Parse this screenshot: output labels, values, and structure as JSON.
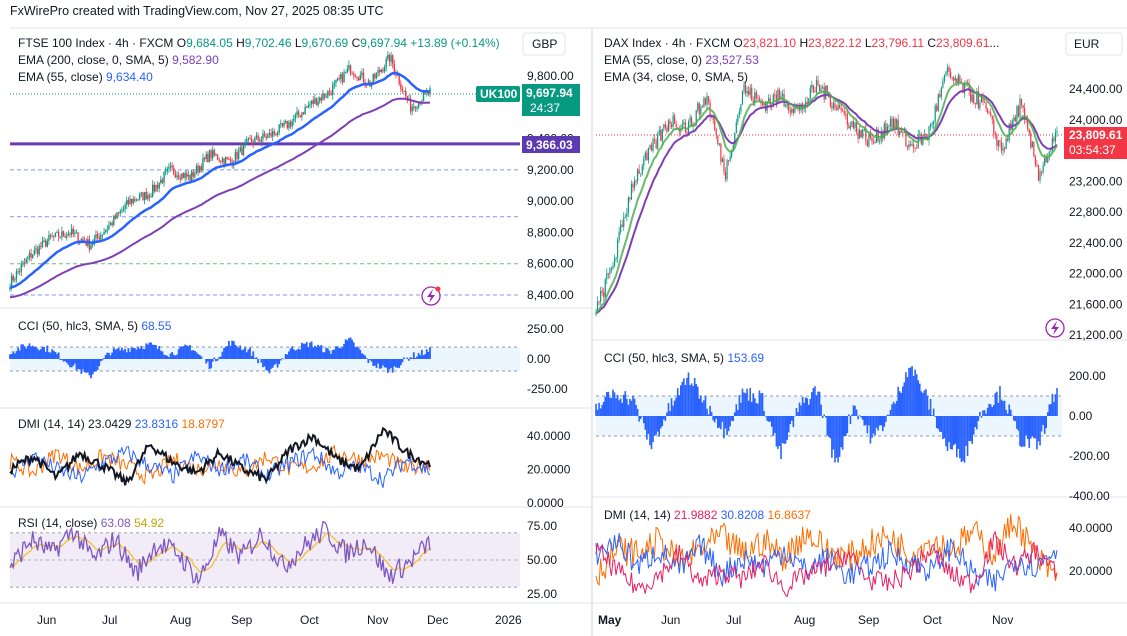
{
  "header": "FxWirePro created with TradingView.com, Nov 27, 2025 08:35 UTC",
  "colors": {
    "bull": "#089981",
    "bear": "#f23645",
    "ema_blue": "#2962ff",
    "ema_purple": "#7e3fb6",
    "ema_green": "#4caf50",
    "line_purple": "#673ab7",
    "cci_blue": "#2962ff",
    "dmi_black": "#131722",
    "dmi_orange": "#ff6d00",
    "dmi_blue": "#2962ff",
    "dmi_red": "#e91e63",
    "rsi_purple": "#7e57c2",
    "rsi_yellow": "#f5c02a",
    "label_green": "#089981",
    "label_red": "#f23645",
    "label_purple": "#5b3ab2"
  },
  "left": {
    "currency": "GBP",
    "legend": {
      "title": "FTSE 100 Index · 4h · FXCM",
      "o": "O",
      "o_val": "9,684.05",
      "h": "H",
      "h_val": "9,702.46",
      "l": "L",
      "l_val": "9,670.69",
      "c": "C",
      "c_val": "9,697.94",
      "chg": "+13.89 (+0.14%)",
      "ema1_label": "EMA (200, close, 0, SMA, 5)",
      "ema1_val": "9,582.90",
      "ema2_label": "EMA (55, close)",
      "ema2_val": "9,634.40"
    },
    "symbol_tag": "UK100",
    "price_tag": "9,697.94",
    "countdown": "24:37",
    "level_tag": "9,366.03",
    "cci_label": "CCI (50, hlc3, SMA, 5)",
    "cci_val": "68.55",
    "dmi_label": "DMI (14, 14)",
    "dmi_v1": "23.0429",
    "dmi_v2": "23.8316",
    "dmi_v3": "18.8797",
    "rsi_label": "RSI (14, close)",
    "rsi_v1": "63.08",
    "rsi_v2": "54.92",
    "x_labels": [
      "Jun",
      "Jul",
      "Aug",
      "Sep",
      "Oct",
      "Nov",
      "Dec",
      "2026"
    ]
  },
  "right": {
    "currency": "EUR",
    "legend": {
      "title": "DAX Index · 4h · FXCM",
      "o": "O",
      "o_val": "23,821.10",
      "h": "H",
      "h_val": "23,822.12",
      "l": "L",
      "l_val": "23,796.11",
      "c": "C",
      "c_val": "23,809.61",
      "ellipsis": "...",
      "ema1_label": "EMA (55, close, 0)",
      "ema1_val": "23,527.53",
      "ema2_label": "EMA (34, close, 0, SMA, 5)"
    },
    "price_tag": "23,809.61",
    "countdown": "03:54:37",
    "cci_label": "CCI (50, hlc3, SMA, 5)",
    "cci_val": "153.69",
    "dmi_label": "DMI (14, 14)",
    "dmi_v1": "21.9882",
    "dmi_v2": "30.8208",
    "dmi_v3": "16.8637",
    "x_labels": [
      "May",
      "Jun",
      "Jul",
      "Aug",
      "Sep",
      "Oct",
      "Nov"
    ]
  },
  "chart_data": [
    {
      "type": "line",
      "title": "FTSE 100 Index · 4h · FXCM",
      "x": [
        "Jun",
        "Jul",
        "Aug",
        "Sep",
        "Oct",
        "Nov",
        "Dec"
      ],
      "series": [
        {
          "name": "FTSE 100 Index",
          "values": [
            8650,
            8800,
            9100,
            9250,
            9400,
            9800,
            9697.94
          ]
        },
        {
          "name": "EMA (200, close, 0, SMA, 5)",
          "values": [
            8500,
            8700,
            8950,
            9100,
            9250,
            9500,
            9582.9
          ]
        },
        {
          "name": "EMA (55, close)",
          "values": [
            8600,
            8780,
            9050,
            9200,
            9350,
            9700,
            9634.4
          ]
        }
      ],
      "yticks": [
        "9,800.00",
        "9,400.00",
        "9,200.00",
        "9,000.00",
        "8,800.00",
        "8,600.00",
        "8,400.00"
      ],
      "ylim": [
        8400,
        9950
      ],
      "hline": 9366.03
    },
    {
      "type": "bar",
      "title": "CCI (50, hlc3, SMA, 5)",
      "yticks": [
        "250.00",
        "0.00",
        "-250.00"
      ],
      "last": 68.55
    },
    {
      "type": "line",
      "title": "DMI (14, 14)",
      "yticks": [
        "40.0000",
        "20.0000",
        "0.0000"
      ],
      "last": [
        23.0429,
        23.8316,
        18.8797
      ]
    },
    {
      "type": "line",
      "title": "RSI (14, close)",
      "yticks": [
        "75.00",
        "50.00",
        "25.00"
      ],
      "last": [
        63.08,
        54.92
      ]
    },
    {
      "type": "line",
      "title": "DAX Index · 4h · FXCM",
      "x": [
        "May",
        "Jun",
        "Jul",
        "Aug",
        "Sep",
        "Oct",
        "Nov"
      ],
      "series": [
        {
          "name": "DAX Index",
          "values": [
            21500,
            24000,
            24300,
            24000,
            23600,
            24400,
            23809.61
          ]
        },
        {
          "name": "EMA (55, close, 0)",
          "values": [
            21200,
            23700,
            24100,
            24000,
            23700,
            24200,
            23527.53
          ]
        }
      ],
      "yticks": [
        "24,400.00",
        "24,000.00",
        "23,200.00",
        "22,800.00",
        "22,400.00",
        "22,000.00",
        "21,600.00",
        "21,200.00"
      ],
      "ylim": [
        21000,
        24800
      ]
    },
    {
      "type": "bar",
      "title": "CCI (50, hlc3, SMA, 5)",
      "yticks": [
        "200.00",
        "0.00",
        "-200.00",
        "-400.00"
      ],
      "last": 153.69
    },
    {
      "type": "line",
      "title": "DMI (14, 14)",
      "yticks": [
        "40.0000",
        "20.0000"
      ],
      "last": [
        21.9882,
        30.8208,
        16.8637
      ]
    }
  ]
}
